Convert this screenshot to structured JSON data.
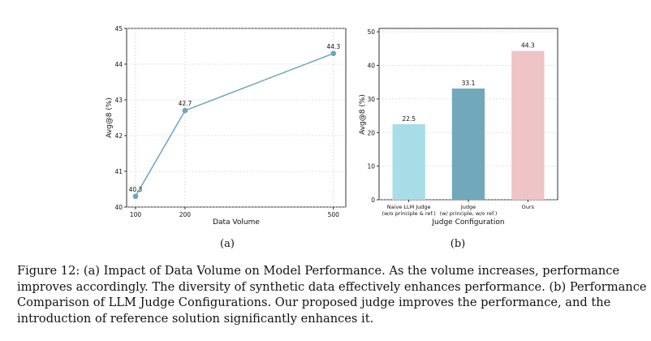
{
  "chart_data": [
    {
      "type": "line",
      "panel_label": "(a)",
      "x": [
        100,
        200,
        500
      ],
      "values": [
        40.3,
        42.7,
        44.3
      ],
      "point_labels": [
        "40.3",
        "42.7",
        "44.3"
      ],
      "xlabel": "Data Volume",
      "ylabel": "Avg@8 (%)",
      "xticks": [
        "100",
        "200",
        "500"
      ],
      "yticks": [
        "40",
        "41",
        "42",
        "43",
        "44",
        "45"
      ],
      "xlim": [
        82,
        525
      ],
      "ylim": [
        40,
        45
      ],
      "grid": true,
      "color": "#6fa3c1"
    },
    {
      "type": "bar",
      "panel_label": "(b)",
      "categories": [
        {
          "line1": "Naive LLM Judge",
          "line2": "(w/o principle & ref.)"
        },
        {
          "line1": "Judge",
          "line2": "(w/ principle, w/o ref.)"
        },
        {
          "line1": "Ours",
          "line2": ""
        }
      ],
      "values": [
        22.5,
        33.1,
        44.3
      ],
      "value_labels": [
        "22.5",
        "33.1",
        "44.3"
      ],
      "colors": [
        "#a8dde8",
        "#72a8bc",
        "#eec4c6"
      ],
      "xlabel": "Judge Configuration",
      "ylabel": "Avg@8 (%)",
      "yticks": [
        "0",
        "10",
        "20",
        "30",
        "40",
        "50"
      ],
      "ylim": [
        0,
        51
      ],
      "grid": true
    }
  ],
  "caption": {
    "lines": [
      "Figure 12: (a) Impact of Data Volume on Model Performance. As the volume increases, performance",
      "improves accordingly. The diversity of synthetic data effectively enhances performance. (b) Performance",
      "Comparison of LLM Judge Configurations. Our proposed judge improves the performance, and the",
      "introduction of reference solution significantly enhances it."
    ]
  }
}
